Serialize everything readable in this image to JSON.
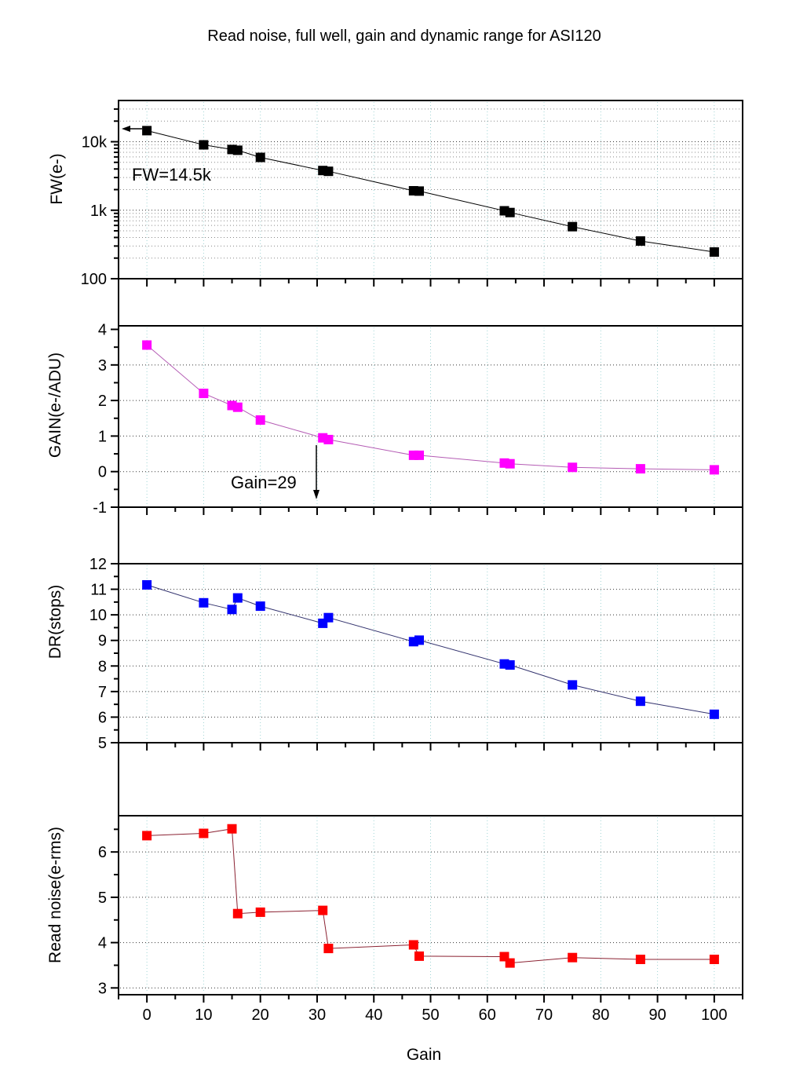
{
  "chart_data": [
    {
      "panel": "full-well",
      "type": "line",
      "title": "Read noise, full well, gain and dynamic range for ASI120",
      "xlabel": "",
      "ylabel": "FW(e-)",
      "yscale": "log",
      "xlim": [
        -5,
        105
      ],
      "ylim": [
        100,
        40000
      ],
      "grid": true,
      "x_ticks": [
        0,
        10,
        20,
        30,
        40,
        50,
        60,
        70,
        80,
        90,
        100
      ],
      "x_minor_ticks": [
        -5,
        5,
        15,
        25,
        35,
        45,
        55,
        65,
        75,
        85,
        95,
        105
      ],
      "y_ticks": [
        100,
        1000,
        10000
      ],
      "y_tick_labels": [
        "100",
        "1k",
        "10k"
      ],
      "y_minor_ticks": [
        200,
        300,
        400,
        500,
        600,
        700,
        800,
        900,
        2000,
        3000,
        4000,
        5000,
        6000,
        7000,
        8000,
        9000,
        20000,
        30000
      ],
      "y_grid": [
        1000,
        10000
      ],
      "y_minor_grid": [
        200,
        300,
        400,
        500,
        600,
        700,
        800,
        900,
        2000,
        3000,
        4000,
        5000,
        6000,
        7000,
        8000,
        9000,
        20000,
        30000
      ],
      "series": [
        {
          "name": "FW",
          "marker": "square",
          "marker_color": "#000000",
          "line_color": "#000000",
          "x": [
            0,
            10,
            15,
            16,
            20,
            31,
            32,
            47,
            48,
            63,
            64,
            75,
            87,
            100
          ],
          "y": [
            14500,
            9000,
            7700,
            7500,
            5900,
            3800,
            3700,
            1920,
            1900,
            980,
            925,
            575,
            355,
            245
          ]
        }
      ],
      "annotations": [
        {
          "text": "FW=14.5k",
          "arrow": "left"
        }
      ]
    },
    {
      "panel": "gain",
      "type": "line",
      "title": "",
      "xlabel": "",
      "ylabel": "GAIN(e-/ADU)",
      "yscale": "linear",
      "xlim": [
        -5,
        105
      ],
      "ylim": [
        -1,
        4.1
      ],
      "grid": true,
      "x_ticks": [
        0,
        10,
        20,
        30,
        40,
        50,
        60,
        70,
        80,
        90,
        100
      ],
      "x_minor_ticks": [
        -5,
        5,
        15,
        25,
        35,
        45,
        55,
        65,
        75,
        85,
        95,
        105
      ],
      "y_ticks": [
        -1,
        0,
        1,
        2,
        3,
        4
      ],
      "y_tick_labels": [
        "-1",
        "0",
        "1",
        "2",
        "3",
        "4"
      ],
      "y_minor_ticks": [
        -0.5,
        0.5,
        1.5,
        2.5,
        3.5
      ],
      "y_grid": [
        0,
        1,
        2,
        3
      ],
      "y_minor_grid": [],
      "series": [
        {
          "name": "GAIN",
          "marker": "square",
          "marker_color": "#ff00ff",
          "line_color": "#b45cb4",
          "x": [
            0,
            10,
            15,
            16,
            20,
            31,
            32,
            47,
            48,
            63,
            64,
            75,
            87,
            100
          ],
          "y": [
            3.56,
            2.2,
            1.86,
            1.81,
            1.45,
            0.95,
            0.9,
            0.46,
            0.46,
            0.24,
            0.22,
            0.12,
            0.08,
            0.05
          ]
        }
      ],
      "annotations": [
        {
          "text": "Gain=29",
          "arrow": "down"
        }
      ]
    },
    {
      "panel": "dynamic-range",
      "type": "line",
      "title": "",
      "xlabel": "",
      "ylabel": "DR(stops)",
      "yscale": "linear",
      "xlim": [
        -5,
        105
      ],
      "ylim": [
        5,
        12
      ],
      "grid": true,
      "x_ticks": [
        0,
        10,
        20,
        30,
        40,
        50,
        60,
        70,
        80,
        90,
        100
      ],
      "x_minor_ticks": [
        -5,
        5,
        15,
        25,
        35,
        45,
        55,
        65,
        75,
        85,
        95,
        105
      ],
      "y_ticks": [
        5,
        6,
        7,
        8,
        9,
        10,
        11,
        12
      ],
      "y_tick_labels": [
        "5",
        "6",
        "7",
        "8",
        "9",
        "10",
        "11",
        "12"
      ],
      "y_minor_ticks": [
        5.5,
        6.5,
        7.5,
        8.5,
        9.5,
        10.5,
        11.5
      ],
      "y_grid": [
        6,
        7,
        8,
        9,
        10,
        11
      ],
      "y_minor_grid": [],
      "series": [
        {
          "name": "DR",
          "marker": "square",
          "marker_color": "#0000ff",
          "line_color": "#33336e",
          "x": [
            0,
            10,
            15,
            16,
            20,
            31,
            32,
            47,
            48,
            63,
            64,
            75,
            87,
            100
          ],
          "y": [
            11.17,
            10.47,
            10.21,
            10.66,
            10.34,
            9.67,
            9.89,
            8.95,
            9.01,
            8.08,
            8.04,
            7.26,
            6.62,
            6.11
          ]
        }
      ],
      "annotations": []
    },
    {
      "panel": "read-noise",
      "type": "line",
      "title": "",
      "xlabel": "Gain",
      "ylabel": "Read noise(e-rms)",
      "yscale": "linear",
      "xlim": [
        -5,
        105
      ],
      "ylim": [
        2.85,
        6.8
      ],
      "grid": true,
      "x_ticks": [
        0,
        10,
        20,
        30,
        40,
        50,
        60,
        70,
        80,
        90,
        100
      ],
      "x_tick_labels": [
        "0",
        "10",
        "20",
        "30",
        "40",
        "50",
        "60",
        "70",
        "80",
        "90",
        "100"
      ],
      "x_minor_ticks": [
        -5,
        5,
        15,
        25,
        35,
        45,
        55,
        65,
        75,
        85,
        95,
        105
      ],
      "y_ticks": [
        3,
        4,
        5,
        6
      ],
      "y_tick_labels": [
        "3",
        "4",
        "5",
        "6"
      ],
      "y_minor_ticks": [
        3.5,
        4.5,
        5.5,
        6.5
      ],
      "y_grid": [
        3,
        4,
        5,
        6
      ],
      "y_minor_grid": [],
      "series": [
        {
          "name": "Read noise",
          "marker": "square",
          "marker_color": "#ff0000",
          "line_color": "#8b2232",
          "x": [
            0,
            10,
            15,
            16,
            20,
            31,
            32,
            47,
            48,
            63,
            64,
            75,
            87,
            100
          ],
          "y": [
            6.36,
            6.41,
            6.51,
            4.64,
            4.67,
            4.71,
            3.87,
            3.95,
            3.7,
            3.69,
            3.55,
            3.67,
            3.63,
            3.63
          ]
        }
      ],
      "annotations": []
    }
  ]
}
